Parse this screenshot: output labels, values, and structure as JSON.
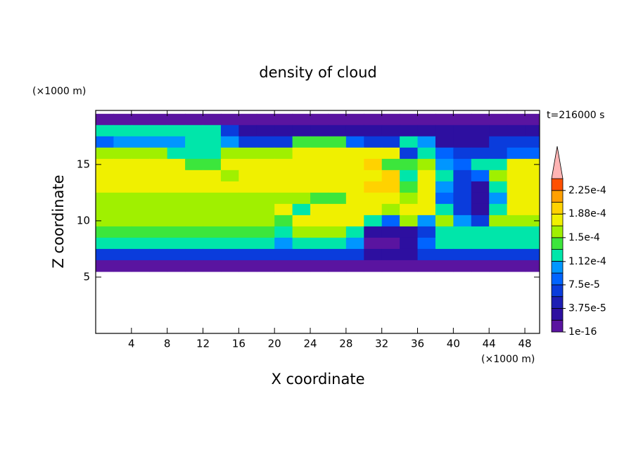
{
  "chart_data": {
    "type": "contour",
    "title": "density of cloud",
    "x_label": "X coordinate",
    "y_label": "Z coordinate",
    "x_unit": "(×1000 m)",
    "y_unit": "(×1000 m)",
    "annotation": "t=216000 s",
    "xlim": [
      0,
      49.65
    ],
    "ylim": [
      0,
      19.8
    ],
    "xticks": [
      4,
      8,
      12,
      16,
      20,
      24,
      28,
      32,
      36,
      40,
      44,
      48
    ],
    "yticks": [
      5,
      10,
      15
    ],
    "x": [
      1,
      3,
      5,
      7,
      9,
      11,
      13,
      15,
      17,
      19,
      21,
      23,
      25,
      27,
      29,
      31,
      33,
      35,
      37,
      39,
      41,
      43,
      45,
      47,
      49
    ],
    "y": [
      19,
      18,
      17,
      16,
      15,
      14,
      13,
      12,
      11,
      10,
      9,
      8,
      7,
      6
    ],
    "z": [
      [
        1e-05,
        1e-05,
        1e-05,
        1e-05,
        1e-05,
        1e-05,
        1e-05,
        1e-05,
        1e-05,
        1e-05,
        1e-05,
        1e-05,
        1e-05,
        1e-05,
        1e-05,
        1e-05,
        1e-05,
        1e-05,
        1e-05,
        1e-05,
        1e-05,
        1e-05,
        1e-05,
        1e-05,
        1e-05
      ],
      [
        0.00013,
        0.00013,
        0.00013,
        0.00013,
        0.00013,
        0.00013,
        0.00013,
        6e-05,
        2e-05,
        2e-05,
        2e-05,
        2e-05,
        2e-05,
        3e-05,
        3e-05,
        3e-05,
        3e-05,
        3e-05,
        3e-05,
        2e-05,
        2e-05,
        2e-05,
        2e-05,
        2e-05,
        2e-05
      ],
      [
        9e-05,
        0.0001,
        0.0001,
        0.0001,
        0.0001,
        0.00013,
        0.00013,
        0.0001,
        6e-05,
        6e-05,
        6e-05,
        0.00014,
        0.00014,
        0.00014,
        9e-05,
        6e-05,
        6e-05,
        0.00012,
        0.0001,
        3e-05,
        3e-05,
        3e-05,
        6e-05,
        6e-05,
        6e-05
      ],
      [
        0.00015,
        0.00015,
        0.00015,
        0.00015,
        0.00012,
        0.00012,
        0.00012,
        0.00016,
        0.00016,
        0.00016,
        0.00016,
        0.00017,
        0.00017,
        0.00017,
        0.00017,
        0.00018,
        0.00018,
        6e-05,
        0.00012,
        9e-05,
        6e-05,
        6e-05,
        6e-05,
        9e-05,
        9e-05
      ],
      [
        0.00017,
        0.00017,
        0.00017,
        0.00017,
        0.00017,
        0.00014,
        0.00014,
        0.000175,
        0.000175,
        0.000175,
        0.000175,
        0.000175,
        0.000175,
        0.000175,
        0.000175,
        0.00019,
        0.00014,
        0.00014,
        0.00016,
        0.0001,
        9e-05,
        0.00012,
        0.00012,
        0.00017,
        0.00017
      ],
      [
        0.00018,
        0.00018,
        0.00018,
        0.00018,
        0.00018,
        0.00018,
        0.00018,
        0.00016,
        0.00018,
        0.00018,
        0.00018,
        0.00018,
        0.00018,
        0.00018,
        0.00018,
        0.00018,
        0.00019,
        0.00013,
        0.00017,
        0.00012,
        6e-05,
        9e-05,
        0.00015,
        0.00018,
        0.00018
      ],
      [
        0.000175,
        0.000175,
        0.000175,
        0.000175,
        0.000175,
        0.000175,
        0.000175,
        0.000175,
        0.000175,
        0.000175,
        0.000175,
        0.000175,
        0.000175,
        0.000175,
        0.000175,
        0.00019,
        0.00019,
        0.00014,
        0.000175,
        0.0001,
        6e-05,
        3e-05,
        0.00012,
        0.000175,
        0.000175
      ],
      [
        0.000165,
        0.000165,
        0.000165,
        0.000165,
        0.000165,
        0.000165,
        0.000165,
        0.000165,
        0.000165,
        0.000165,
        0.000165,
        0.000165,
        0.00014,
        0.00014,
        0.000185,
        0.000185,
        0.000185,
        0.00015,
        0.00017,
        9e-05,
        6e-05,
        3e-05,
        0.0001,
        0.00017,
        0.00017
      ],
      [
        0.00016,
        0.00016,
        0.00016,
        0.00016,
        0.00016,
        0.00016,
        0.00016,
        0.00016,
        0.00016,
        0.00016,
        0.00017,
        0.00013,
        0.00017,
        0.00017,
        0.00018,
        0.00018,
        0.00016,
        0.00017,
        0.000175,
        0.00012,
        6e-05,
        3e-05,
        0.00013,
        0.00017,
        0.00017
      ],
      [
        0.000155,
        0.000155,
        0.000155,
        0.000155,
        0.000155,
        0.000155,
        0.000155,
        0.000155,
        0.000155,
        0.000155,
        0.000135,
        0.00017,
        0.00017,
        0.00017,
        0.000175,
        0.00012,
        9e-05,
        0.00015,
        0.0001,
        0.00015,
        0.00011,
        6e-05,
        0.00016,
        0.00016,
        0.00016
      ],
      [
        0.00014,
        0.00014,
        0.00014,
        0.00014,
        0.00014,
        0.00014,
        0.00014,
        0.00014,
        0.00014,
        0.00014,
        0.00013,
        0.00015,
        0.00015,
        0.00015,
        0.00013,
        3e-05,
        2e-05,
        3e-05,
        6e-05,
        0.00013,
        0.00013,
        0.00013,
        0.00013,
        0.00013,
        0.00013
      ],
      [
        0.000125,
        0.000125,
        0.000125,
        0.000125,
        0.000125,
        0.000125,
        0.000125,
        0.000125,
        0.000125,
        0.000125,
        0.0001,
        0.000125,
        0.000125,
        0.000125,
        0.0001,
        1e-05,
        1e-05,
        3e-05,
        9e-05,
        0.00012,
        0.00012,
        0.00012,
        0.00012,
        0.00012,
        0.00012
      ],
      [
        7e-05,
        7e-05,
        7e-05,
        7e-05,
        7e-05,
        7e-05,
        7e-05,
        7e-05,
        7e-05,
        7e-05,
        7e-05,
        7e-05,
        7e-05,
        7e-05,
        7e-05,
        3e-05,
        3e-05,
        3e-05,
        7e-05,
        7e-05,
        7e-05,
        7e-05,
        7e-05,
        7e-05,
        7e-05
      ],
      [
        1.5e-05,
        1.5e-05,
        1.5e-05,
        1.5e-05,
        1.5e-05,
        1.5e-05,
        1.5e-05,
        1.5e-05,
        1.5e-05,
        1.5e-05,
        1.5e-05,
        1.5e-05,
        1.5e-05,
        1.5e-05,
        1.5e-05,
        1.5e-05,
        1.5e-05,
        1.5e-05,
        1.5e-05,
        1.5e-05,
        1.5e-05,
        1.5e-05,
        1.5e-05,
        1.5e-05,
        1.5e-05
      ]
    ],
    "colorbar": {
      "levels": [
        1e-16,
        1.875e-05,
        3.75e-05,
        5.625e-05,
        7.5e-05,
        9.375e-05,
        0.0001125,
        0.00013125,
        0.00015,
        0.00016875,
        0.0001875,
        0.00020625,
        0.000225,
        0.00024375
      ],
      "colors": [
        "#5a14a0",
        "#2d0fa0",
        "#1e1eb4",
        "#0a3cdc",
        "#0064ff",
        "#0096ff",
        "#00e6aa",
        "#3ce63c",
        "#a0f000",
        "#f0f000",
        "#ffd200",
        "#ffa000",
        "#ff5000"
      ],
      "over_color": "#ffb4b4",
      "ticks": [
        1e-16,
        {
          "value": 3.75e-05,
          "label": "3.75e-5"
        },
        {
          "value": 7.5e-05,
          "label": "7.5e-5"
        },
        {
          "value": 0.000112,
          "label": "1.12e-4"
        },
        {
          "value": 0.00015,
          "label": "1.5e-4"
        },
        {
          "value": 0.000188,
          "label": "1.88e-4"
        },
        {
          "value": 0.000225,
          "label": "2.25e-4"
        }
      ]
    }
  }
}
